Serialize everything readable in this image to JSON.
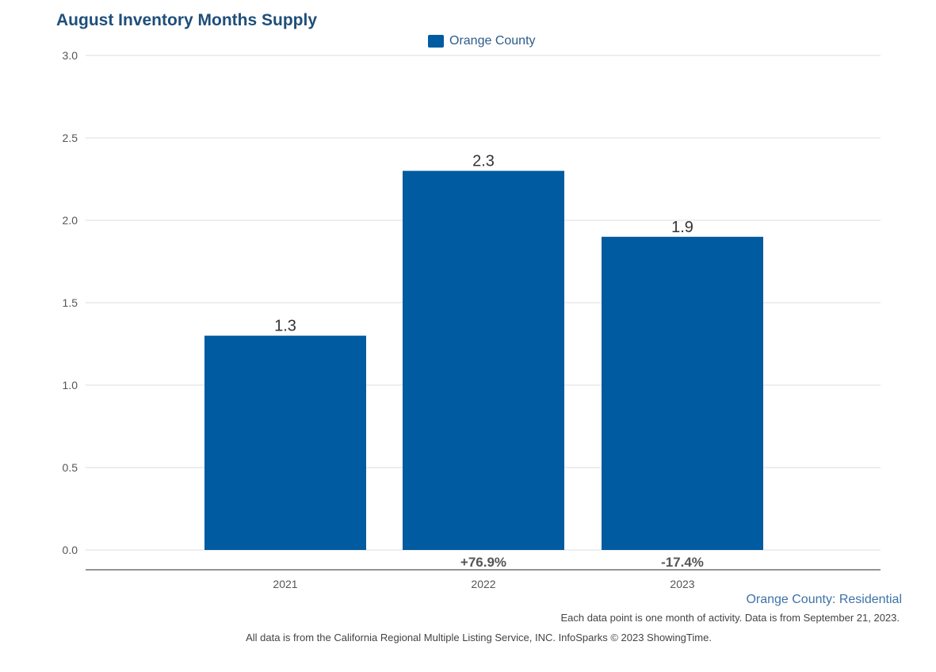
{
  "chart_data": {
    "type": "bar",
    "title": "August Inventory Months Supply",
    "categories": [
      "2021",
      "2022",
      "2023"
    ],
    "series": [
      {
        "name": "Orange County",
        "values": [
          1.3,
          2.3,
          1.9
        ],
        "data_labels": [
          "1.3",
          "2.3",
          "1.9"
        ],
        "change_labels": [
          "",
          "+76.9%",
          "-17.4%"
        ]
      }
    ],
    "ylim": [
      0,
      3.0
    ],
    "yticks": [
      "0.0",
      "0.5",
      "1.0",
      "1.5",
      "2.0",
      "2.5",
      "3.0"
    ],
    "ytick_values": [
      0,
      0.5,
      1.0,
      1.5,
      2.0,
      2.5,
      3.0
    ],
    "grid": true,
    "legend_position": "top-center",
    "bar_color": "#005ba1",
    "gridline_color": "#dddddd",
    "axis_color": "#555555"
  },
  "footer": {
    "series_label": "Orange County: Residential",
    "note": "Each data point is one month of activity. Data is from September 21, 2023.",
    "source": "All data is from the California Regional Multiple Listing Service, INC. InfoSparks © 2023 ShowingTime."
  }
}
